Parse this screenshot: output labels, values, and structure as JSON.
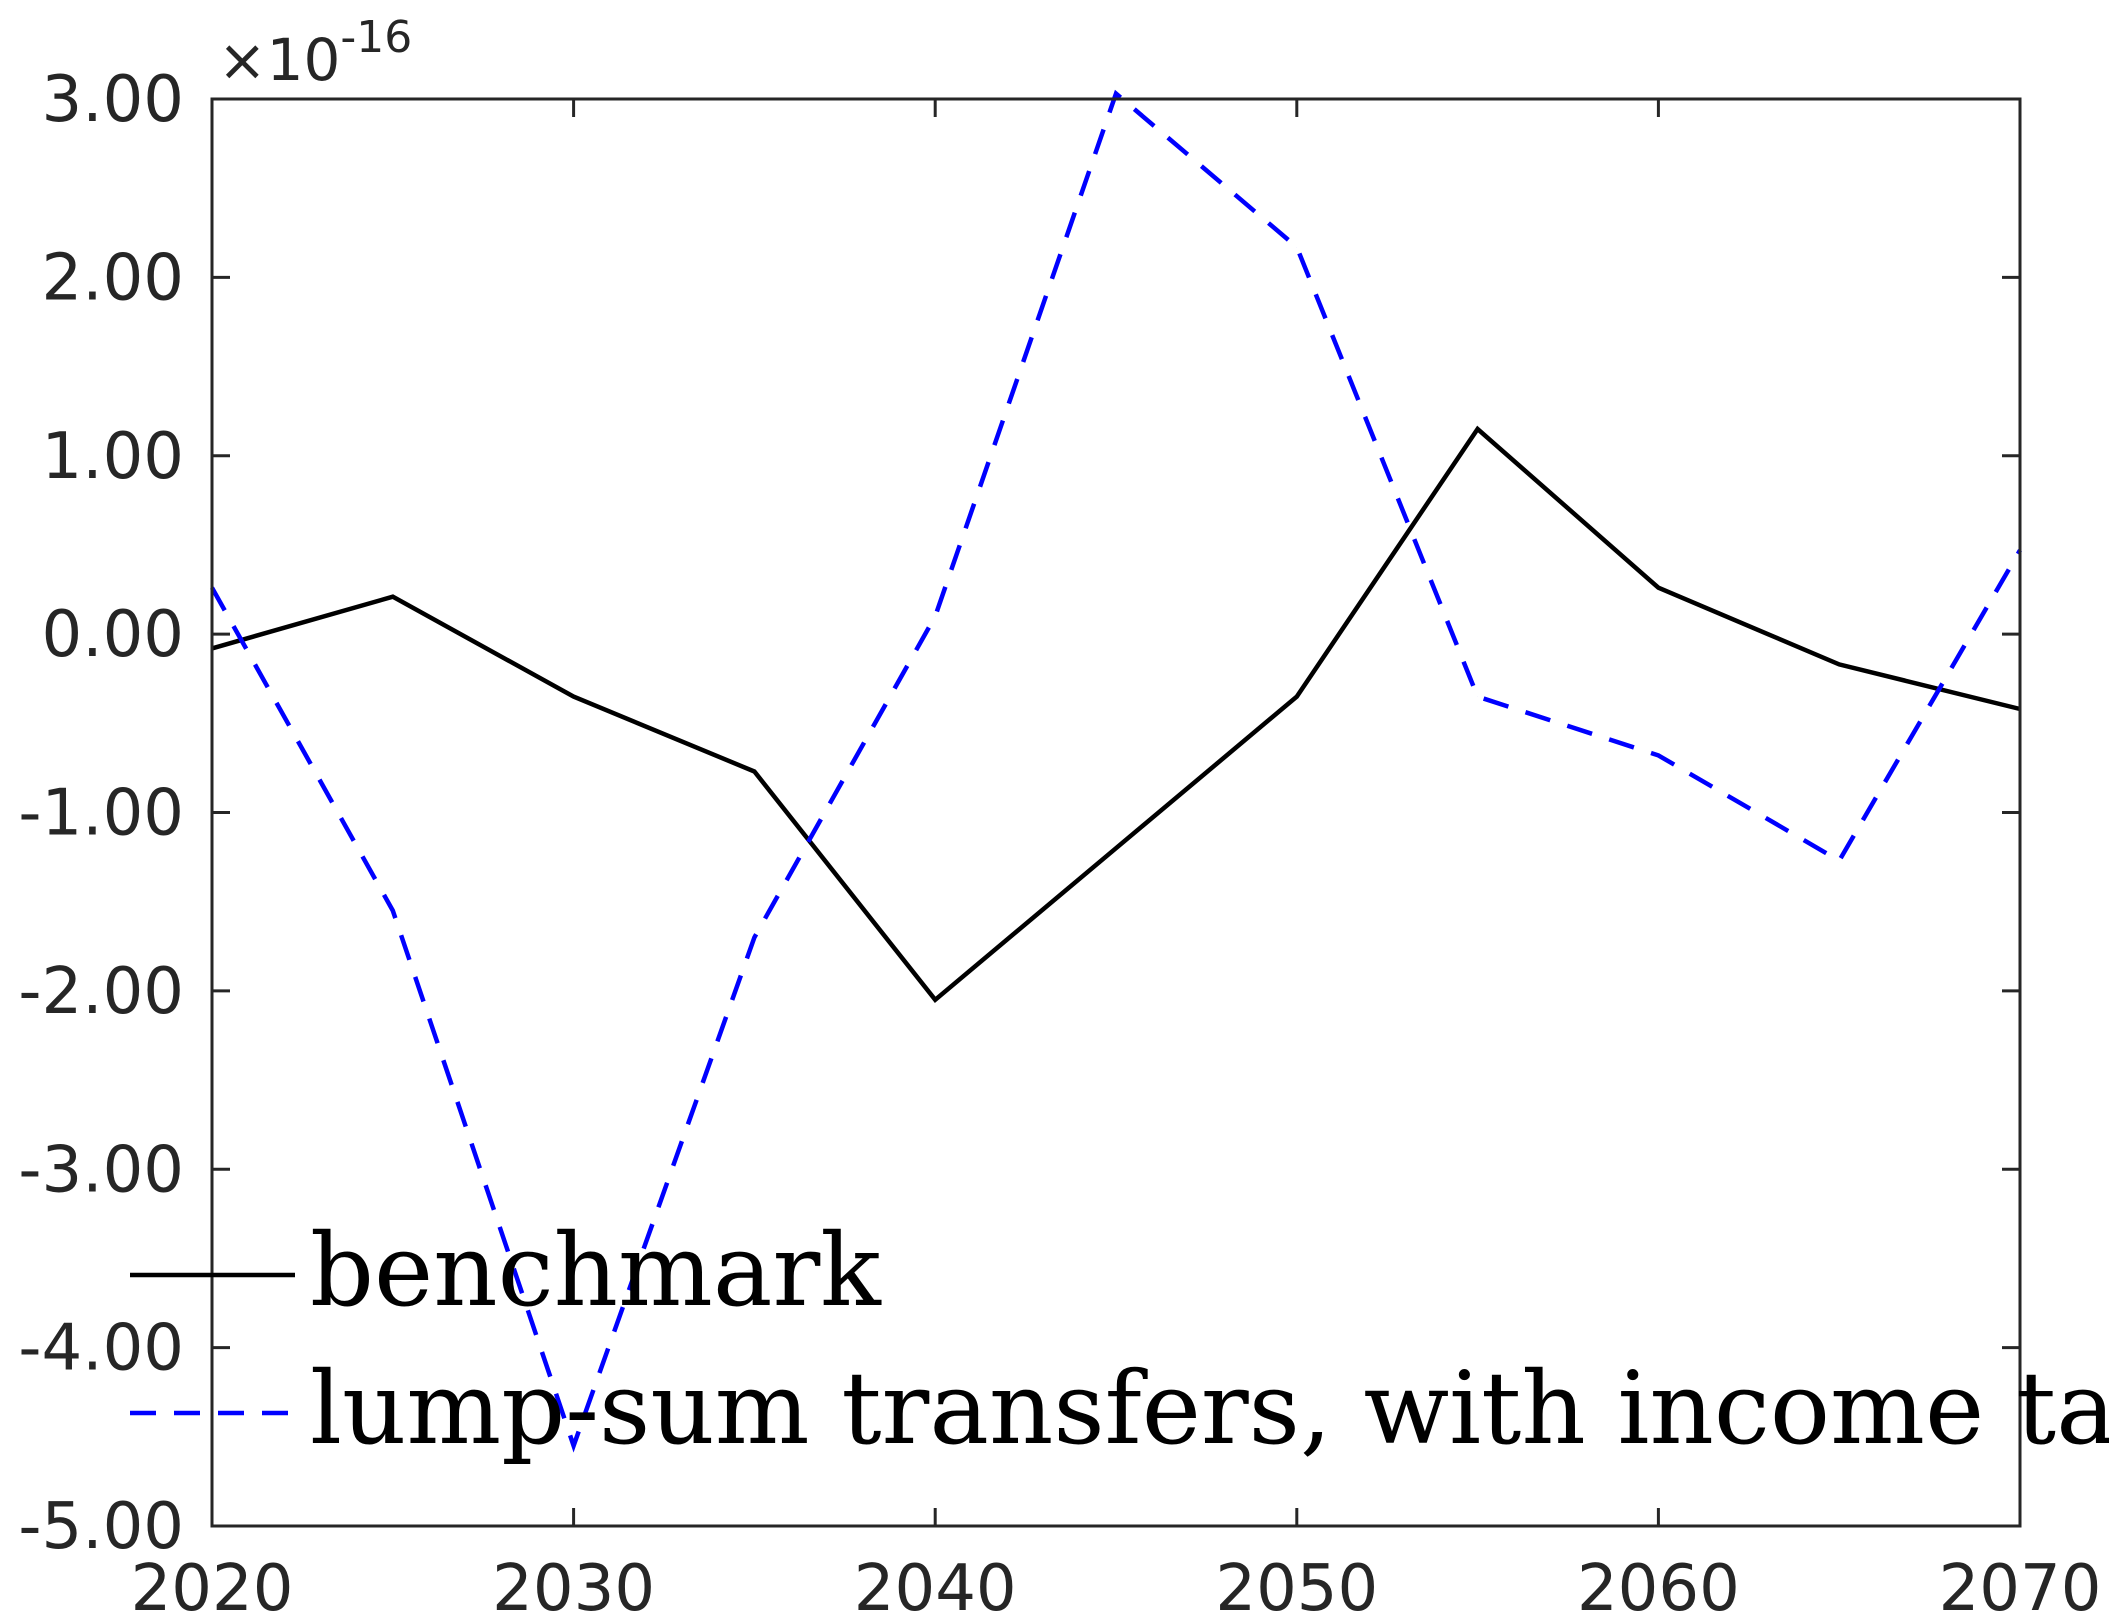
{
  "chart_data": {
    "type": "line",
    "title": "",
    "xlabel": "",
    "ylabel": "",
    "y_multiplier_label": {
      "prefix": "×10",
      "exponent": "-16"
    },
    "xlim": [
      2020,
      2070
    ],
    "ylim": [
      -5,
      3
    ],
    "xticks": [
      2020,
      2030,
      2040,
      2050,
      2060,
      2070
    ],
    "xtick_labels": [
      "2020",
      "2030",
      "2040",
      "2050",
      "2060",
      "2070"
    ],
    "yticks": [
      3,
      2,
      1,
      0,
      -1,
      -2,
      -3,
      -4,
      -5
    ],
    "ytick_labels": [
      "3.00",
      "2.00",
      "1.00",
      "0.00",
      "-1.00",
      "-2.00",
      "-3.00",
      "-4.00",
      "-5.00"
    ],
    "grid": false,
    "legend_position": "bottom-left",
    "x": [
      2020,
      2025,
      2030,
      2035,
      2040,
      2045,
      2050,
      2055,
      2060,
      2065,
      2070
    ],
    "series": [
      {
        "name": "benchmark",
        "color": "#000000",
        "style": "solid",
        "values": [
          -0.08,
          0.21,
          -0.35,
          -0.77,
          -2.05,
          -1.2,
          -0.35,
          1.15,
          0.26,
          -0.17,
          -0.42
        ]
      },
      {
        "name": "lump-sum transfers, with income tax",
        "color": "#0000ff",
        "style": "dashed",
        "values": [
          0.26,
          -1.55,
          -4.55,
          -1.7,
          0.1,
          3.03,
          2.17,
          -0.35,
          -0.68,
          -1.27,
          0.47
        ]
      }
    ]
  }
}
